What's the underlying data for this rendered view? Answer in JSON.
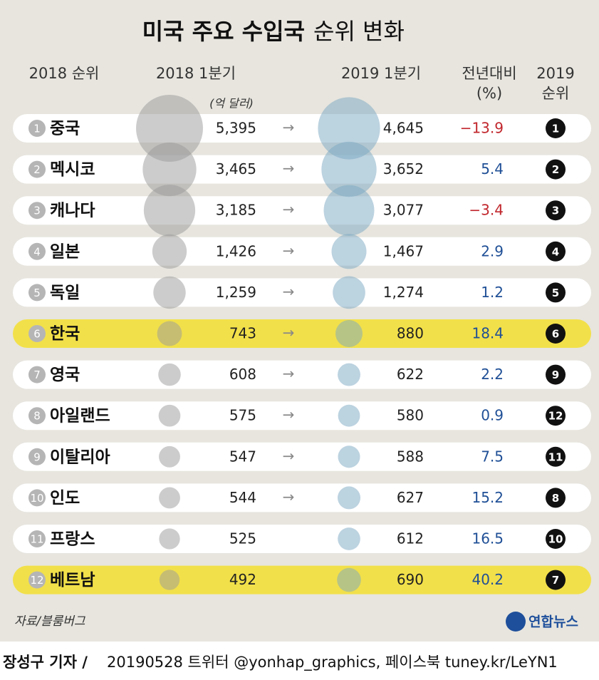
{
  "chart_data": {
    "type": "bubble-table",
    "title_bold": "미국 주요 수입국",
    "title_rest": "순위 변화",
    "header_rank2018": "2018 순위",
    "unit": "(억 달러)",
    "header_change": [
      "전년대비",
      "(%)"
    ],
    "header_rank2019": [
      "2019",
      "순위"
    ],
    "categories": [
      "중국",
      "멕시코",
      "캐나다",
      "일본",
      "독일",
      "한국",
      "영국",
      "아일랜드",
      "이탈리아",
      "인도",
      "프랑스",
      "베트남"
    ],
    "rank_2018": [
      1,
      2,
      3,
      4,
      5,
      6,
      7,
      8,
      9,
      10,
      11,
      12
    ],
    "series": [
      {
        "name": "2018  1분기",
        "color": "#9a9a9a",
        "values": [
          5395,
          3465,
          3185,
          1426,
          1259,
          743,
          608,
          575,
          547,
          544,
          525,
          492
        ],
        "value_labels": [
          "5,395",
          "3,465",
          "3,185",
          "1,426",
          "1,259",
          "743",
          "608",
          "575",
          "547",
          "544",
          "525",
          "492"
        ]
      },
      {
        "name": "2019  1분기",
        "color": "#7aa8c2",
        "values": [
          4645,
          3652,
          3077,
          1467,
          1274,
          880,
          622,
          580,
          588,
          627,
          612,
          690
        ],
        "value_labels": [
          "4,645",
          "3,652",
          "3,077",
          "1,467",
          "1,274",
          "880",
          "622",
          "580",
          "588",
          "627",
          "612",
          "690"
        ]
      }
    ],
    "arrows": [
      "→",
      "→",
      "→",
      "→",
      "→",
      "→",
      "→",
      "→",
      "→",
      "→",
      null,
      null
    ],
    "change": {
      "values": [
        -13.9,
        5.4,
        -3.4,
        2.9,
        1.2,
        18.4,
        2.2,
        0.9,
        7.5,
        15.2,
        16.5,
        40.2
      ],
      "value_labels": [
        "−13.9",
        "5.4",
        "−3.4",
        "2.9",
        "1.2",
        "18.4",
        "2.2",
        "0.9",
        "7.5",
        "15.2",
        "16.5",
        "40.2"
      ]
    },
    "negative_color": "#c1272d",
    "positive_color": "#1f4f96",
    "rank_2019": [
      1,
      2,
      3,
      4,
      5,
      6,
      9,
      12,
      11,
      8,
      10,
      7
    ],
    "highlighted": [
      5,
      11
    ],
    "highlight_color": "#f2e04a",
    "source": "자료/블룸버그",
    "logo": "연합뉴스",
    "footer_bold": "장성구 기자 /",
    "footer_rest": "20190528  트위터 @yonhap_graphics, 페이스북 tuney.kr/LeYN1"
  }
}
